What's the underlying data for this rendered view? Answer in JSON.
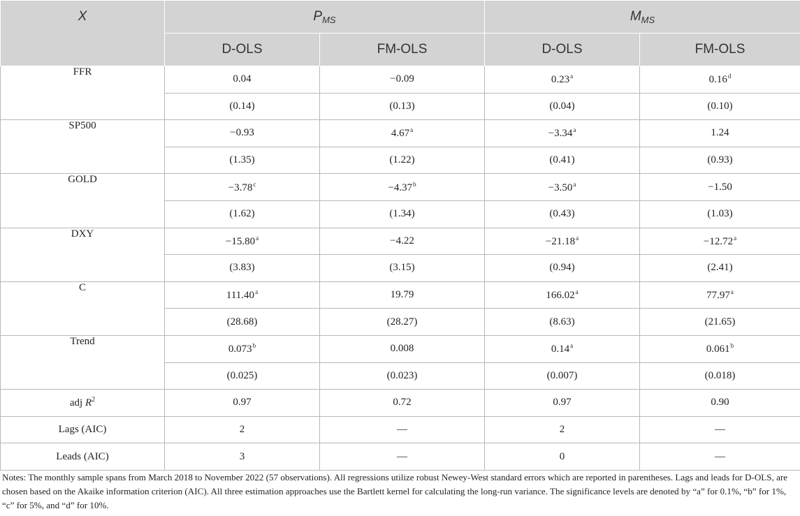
{
  "table": {
    "header": {
      "x_label": "X",
      "group1": {
        "symbol": "P",
        "sub": "MS"
      },
      "group2": {
        "symbol": "M",
        "sub": "MS"
      },
      "sub_cols": [
        "D-OLS",
        "FM-OLS",
        "D-OLS",
        "FM-OLS"
      ]
    },
    "rows": [
      {
        "name": "FFR",
        "coef": [
          {
            "v": "0.04",
            "s": ""
          },
          {
            "v": "−0.09",
            "s": ""
          },
          {
            "v": "0.23",
            "s": "a"
          },
          {
            "v": "0.16",
            "s": "d"
          }
        ],
        "se": [
          "(0.14)",
          "(0.13)",
          "(0.04)",
          "(0.10)"
        ]
      },
      {
        "name": "SP500",
        "coef": [
          {
            "v": "−0.93",
            "s": ""
          },
          {
            "v": "4.67",
            "s": "a"
          },
          {
            "v": "−3.34",
            "s": "a"
          },
          {
            "v": "1.24",
            "s": ""
          }
        ],
        "se": [
          "(1.35)",
          "(1.22)",
          "(0.41)",
          "(0.93)"
        ]
      },
      {
        "name": "GOLD",
        "coef": [
          {
            "v": "−3.78",
            "s": "c"
          },
          {
            "v": "−4.37",
            "s": "b"
          },
          {
            "v": "−3.50",
            "s": "a"
          },
          {
            "v": "−1.50",
            "s": ""
          }
        ],
        "se": [
          "(1.62)",
          "(1.34)",
          "(0.43)",
          "(1.03)"
        ]
      },
      {
        "name": "DXY",
        "coef": [
          {
            "v": "−15.80",
            "s": "a"
          },
          {
            "v": "−4.22",
            "s": ""
          },
          {
            "v": "−21.18",
            "s": "a"
          },
          {
            "v": "−12.72",
            "s": "a"
          }
        ],
        "se": [
          "(3.83)",
          "(3.15)",
          "(0.94)",
          "(2.41)"
        ]
      },
      {
        "name": "C",
        "coef": [
          {
            "v": "111.40",
            "s": "a"
          },
          {
            "v": "19.79",
            "s": ""
          },
          {
            "v": "166.02",
            "s": "a"
          },
          {
            "v": "77.97",
            "s": "a"
          }
        ],
        "se": [
          "(28.68)",
          "(28.27)",
          "(8.63)",
          "(21.65)"
        ]
      },
      {
        "name": "Trend",
        "coef": [
          {
            "v": "0.073",
            "s": "b"
          },
          {
            "v": "0.008",
            "s": ""
          },
          {
            "v": "0.14",
            "s": "a"
          },
          {
            "v": "0.061",
            "s": "b"
          }
        ],
        "se": [
          "(0.025)",
          "(0.023)",
          "(0.007)",
          "(0.018)"
        ]
      }
    ],
    "adj_r2": {
      "prefix": "adj ",
      "symbol": "R",
      "sup": "2",
      "values": [
        "0.97",
        "0.72",
        "0.97",
        "0.90"
      ]
    },
    "lags": {
      "label": "Lags (AIC)",
      "values": [
        "2",
        "—",
        "2",
        "—"
      ]
    },
    "leads": {
      "label": "Leads (AIC)",
      "values": [
        "3",
        "—",
        "0",
        "—"
      ]
    }
  },
  "notes": "Notes: The monthly sample spans from March 2018 to November 2022 (57 observations). All regressions utilize robust Newey-West standard errors which are reported in parentheses. Lags and leads for D-OLS, are chosen based on the Akaike information criterion (AIC). All three estimation approaches use the Bartlett kernel for calculating the long-run variance. The significance levels are denoted by “a” for 0.1%, “b” for 1%, “c” for 5%, and “d” for 10%."
}
